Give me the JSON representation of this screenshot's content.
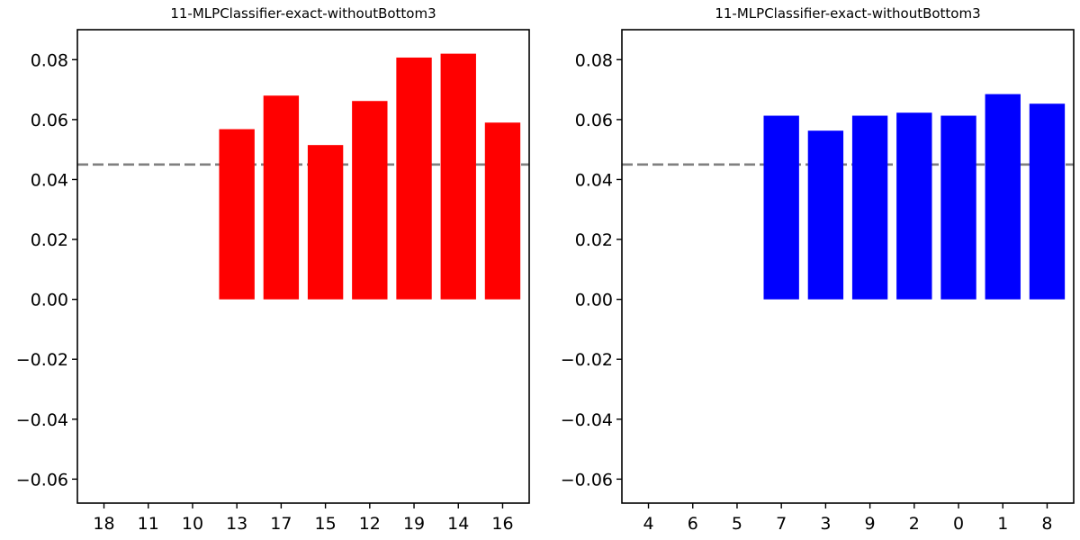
{
  "chart_data": [
    {
      "type": "bar",
      "title": "11-MLPClassifier-exact-withoutBottom3",
      "xlabel": "",
      "ylabel": "",
      "categories": [
        "18",
        "11",
        "10",
        "13",
        "17",
        "15",
        "12",
        "19",
        "14",
        "16"
      ],
      "values": [
        null,
        null,
        null,
        0.0568,
        0.068,
        0.0515,
        0.0662,
        0.0807,
        0.082,
        0.059
      ],
      "bar_color": "#ff0000",
      "reference_line": 0.045,
      "reference_line_color": "#808080",
      "ylim": [
        -0.068,
        0.09
      ],
      "yticks": [
        -0.06,
        -0.04,
        -0.02,
        0.0,
        0.02,
        0.04,
        0.06,
        0.08
      ],
      "ytick_labels": [
        "−0.06",
        "−0.04",
        "−0.02",
        "0.00",
        "0.02",
        "0.04",
        "0.06",
        "0.08"
      ],
      "grid": false,
      "legend": "none"
    },
    {
      "type": "bar",
      "title": "11-MLPClassifier-exact-withoutBottom3",
      "xlabel": "",
      "ylabel": "",
      "categories": [
        "4",
        "6",
        "5",
        "7",
        "3",
        "9",
        "2",
        "0",
        "1",
        "8"
      ],
      "values": [
        null,
        null,
        null,
        0.0613,
        0.0563,
        0.0613,
        0.0623,
        0.0613,
        0.0685,
        0.0653
      ],
      "bar_color": "#0000ff",
      "reference_line": 0.045,
      "reference_line_color": "#808080",
      "ylim": [
        -0.068,
        0.09
      ],
      "yticks": [
        -0.06,
        -0.04,
        -0.02,
        0.0,
        0.02,
        0.04,
        0.06,
        0.08
      ],
      "ytick_labels": [
        "−0.06",
        "−0.04",
        "−0.02",
        "0.00",
        "0.02",
        "0.04",
        "0.06",
        "0.08"
      ],
      "grid": false,
      "legend": "none"
    }
  ]
}
